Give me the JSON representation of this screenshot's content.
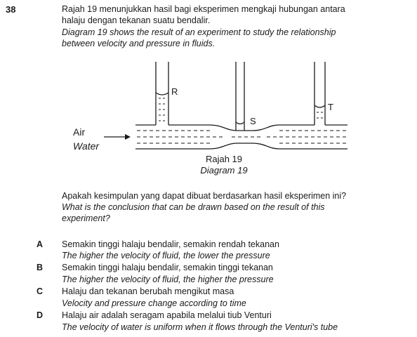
{
  "question": {
    "number": "38",
    "stem_ms_1": "Rajah 19 menunjukkan hasil bagi eksperimen mengkaji hubungan antara",
    "stem_ms_2": "halaju dengan tekanan suatu bendalir.",
    "stem_en_1": "Diagram 19 shows the result of an experiment to study the relationship",
    "stem_en_2": "between velocity and pressure in fluids."
  },
  "diagram": {
    "label_r": "R",
    "label_s": "S",
    "label_t": "T",
    "label_air": "Air",
    "label_water": "Water",
    "caption_ms": "Rajah 19",
    "caption_en": "Diagram 19"
  },
  "prompt": {
    "ms": "Apakah kesimpulan yang dapat dibuat berdasarkan hasil eksperimen ini?",
    "en_1": "What is the conclusion that can be drawn based on the result of this",
    "en_2": "experiment?"
  },
  "options": [
    {
      "letter": "A",
      "ms": "Semakin tinggi halaju bendalir, semakin rendah tekanan",
      "en": "The higher the velocity of fluid, the lower the pressure"
    },
    {
      "letter": "B",
      "ms": "Semakin tinggi halaju bendalir, semakin tinggi tekanan",
      "en": "The higher the velocity of fluid, the higher the pressure"
    },
    {
      "letter": "C",
      "ms": "Halaju dan tekanan berubah mengikut masa",
      "en": "Velocity and pressure change according to time"
    },
    {
      "letter": "D",
      "ms": "Halaju air adalah seragam apabila melalui tiub Venturi",
      "en": "The velocity of water is uniform when it flows through the Venturi's tube"
    }
  ]
}
